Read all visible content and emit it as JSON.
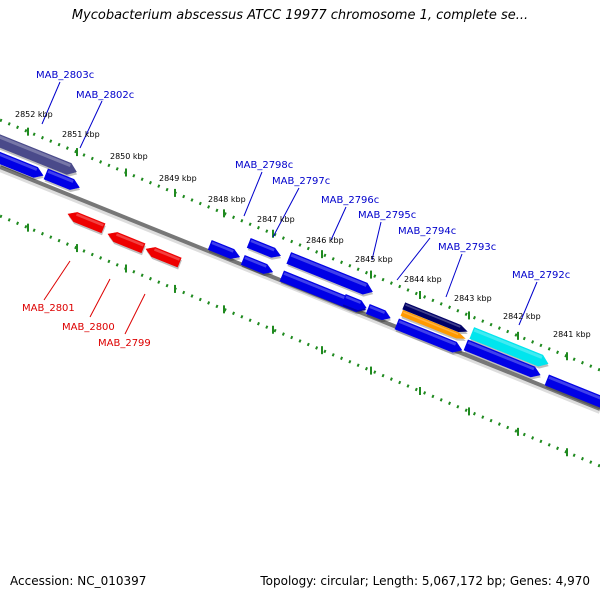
{
  "title": "Mycobacterium abscessus ATCC 19977 chromosome 1, complete se...",
  "footer": {
    "accession": "Accession: NC_010397",
    "stats": "Topology: circular; Length: 5,067,172 bp; Genes: 4,970"
  },
  "colors": {
    "backbone": "#777777",
    "tick": "#1f8a1f",
    "forward_label": "#0000cc",
    "reverse_label": "#dd0000",
    "gene_blue": "#0000e6",
    "gene_red": "#ee0000",
    "gene_dark": "#4a4a8a",
    "gene_cyan": "#00e5ee",
    "gene_orange": "#ff9900",
    "gene_navy": "#000066"
  },
  "kbp_labels": [
    "2852 kbp",
    "2851 kbp",
    "2850 kbp",
    "2849 kbp",
    "2848 kbp",
    "2847 kbp",
    "2846 kbp",
    "2845 kbp",
    "2844 kbp",
    "2843 kbp",
    "2842 kbp",
    "2841 kbp"
  ],
  "forward_genes": [
    "MAB_2803c",
    "MAB_2802c",
    "MAB_2798c",
    "MAB_2797c",
    "MAB_2796c",
    "MAB_2795c",
    "MAB_2794c",
    "MAB_2793c",
    "MAB_2792c"
  ],
  "reverse_genes": [
    "MAB_2801",
    "MAB_2800",
    "MAB_2799"
  ]
}
